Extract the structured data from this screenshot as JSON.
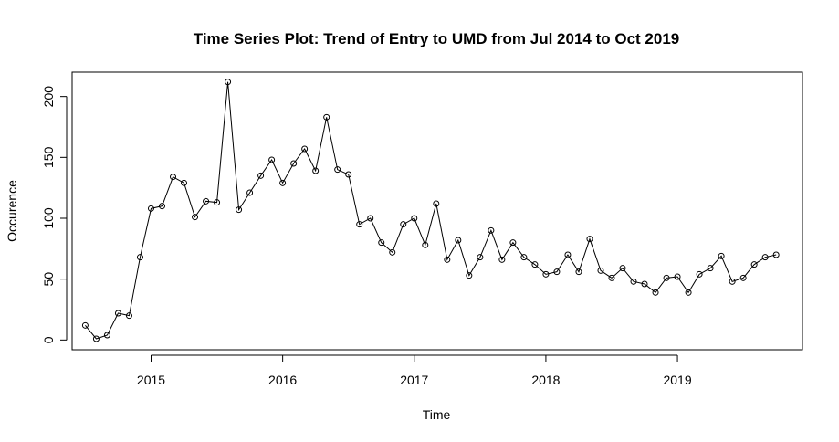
{
  "chart_data": {
    "type": "line",
    "title": "Time Series Plot: Trend of Entry to UMD from Jul 2014 to Oct 2019",
    "xlabel": "Time",
    "ylabel": "Occurence",
    "xlim": [
      2014.4,
      2019.95
    ],
    "ylim": [
      -8,
      220
    ],
    "x_ticks": [
      2015,
      2016,
      2017,
      2018,
      2019
    ],
    "y_ticks": [
      0,
      50,
      100,
      150,
      200
    ],
    "grid": false,
    "legend": "none",
    "marker": "open-circle",
    "x_start": "2014-07",
    "x_frequency": "monthly",
    "series": [
      {
        "values": [
          12,
          1,
          4,
          22,
          20,
          68,
          108,
          110,
          134,
          129,
          101,
          114,
          113,
          212,
          107,
          121,
          135,
          148,
          129,
          145,
          157,
          139,
          183,
          140,
          136,
          95,
          100,
          80,
          72,
          95,
          100,
          78,
          112,
          66,
          82,
          53,
          68,
          90,
          66,
          80,
          68,
          62,
          54,
          56,
          70,
          56,
          83,
          57,
          51,
          59,
          48,
          46,
          39,
          51,
          52,
          39,
          54,
          59,
          69,
          48,
          51,
          62,
          68,
          70
        ]
      }
    ]
  }
}
